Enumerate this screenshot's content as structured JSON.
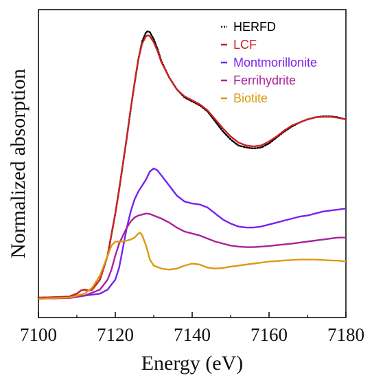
{
  "chart_data": {
    "type": "line",
    "xlabel": "Energy (eV)",
    "ylabel": "Normalized absorption",
    "xlim": [
      7100,
      7180
    ],
    "ylim": [
      0,
      1.4
    ],
    "xticks": [
      "7100",
      "7120",
      "7140",
      "7160",
      "7180"
    ],
    "yticks_shown": false,
    "grid": false,
    "legend_position": "top-right",
    "series": [
      {
        "name": "HERFD",
        "color": "#000000",
        "style": "dotted",
        "x": [
          7100,
          7104,
          7108,
          7110,
          7111,
          7112,
          7113,
          7114,
          7116,
          7118,
          7120,
          7121,
          7122,
          7123,
          7124,
          7125,
          7126,
          7127,
          7128,
          7128.5,
          7129,
          7130,
          7131,
          7132,
          7134,
          7136,
          7138,
          7140,
          7142,
          7144,
          7146,
          7148,
          7150,
          7152,
          7154,
          7156,
          7158,
          7160,
          7162,
          7164,
          7166,
          7168,
          7170,
          7172,
          7174,
          7176,
          7178,
          7180
        ],
        "y": [
          0.01,
          0.012,
          0.015,
          0.03,
          0.045,
          0.05,
          0.045,
          0.05,
          0.1,
          0.22,
          0.43,
          0.55,
          0.68,
          0.81,
          0.95,
          1.08,
          1.2,
          1.29,
          1.335,
          1.34,
          1.335,
          1.3,
          1.25,
          1.19,
          1.11,
          1.05,
          1.01,
          0.99,
          0.97,
          0.94,
          0.89,
          0.84,
          0.8,
          0.77,
          0.76,
          0.755,
          0.76,
          0.78,
          0.81,
          0.84,
          0.865,
          0.885,
          0.9,
          0.91,
          0.915,
          0.915,
          0.91,
          0.9
        ]
      },
      {
        "name": "LCF",
        "color": "#cc2222",
        "style": "solid",
        "x": [
          7100,
          7104,
          7108,
          7110,
          7111,
          7112,
          7113,
          7114,
          7116,
          7118,
          7120,
          7121,
          7122,
          7123,
          7124,
          7125,
          7126,
          7127,
          7128,
          7128.5,
          7129,
          7130,
          7131,
          7132,
          7134,
          7136,
          7138,
          7140,
          7142,
          7144,
          7146,
          7148,
          7150,
          7152,
          7154,
          7156,
          7158,
          7160,
          7162,
          7164,
          7166,
          7168,
          7170,
          7172,
          7174,
          7176,
          7178,
          7180
        ],
        "y": [
          0.01,
          0.012,
          0.015,
          0.03,
          0.045,
          0.05,
          0.045,
          0.05,
          0.1,
          0.22,
          0.43,
          0.55,
          0.68,
          0.81,
          0.95,
          1.08,
          1.2,
          1.28,
          1.315,
          1.32,
          1.315,
          1.285,
          1.24,
          1.185,
          1.11,
          1.05,
          1.015,
          0.995,
          0.975,
          0.945,
          0.9,
          0.855,
          0.815,
          0.785,
          0.77,
          0.765,
          0.77,
          0.79,
          0.815,
          0.845,
          0.87,
          0.885,
          0.9,
          0.91,
          0.913,
          0.913,
          0.908,
          0.9
        ]
      },
      {
        "name": "Montmorillonite",
        "color": "#7722ee",
        "style": "solid",
        "x": [
          7100,
          7108,
          7112,
          7116,
          7118,
          7120,
          7121,
          7122,
          7123,
          7124,
          7125,
          7126,
          7127,
          7128,
          7129,
          7130,
          7131,
          7132,
          7134,
          7136,
          7138,
          7140,
          7142,
          7144,
          7146,
          7148,
          7150,
          7152,
          7154,
          7156,
          7158,
          7160,
          7162,
          7164,
          7166,
          7168,
          7170,
          7172,
          7174,
          7176,
          7178,
          7180
        ],
        "y": [
          0.005,
          0.008,
          0.02,
          0.03,
          0.05,
          0.1,
          0.16,
          0.26,
          0.36,
          0.44,
          0.5,
          0.54,
          0.57,
          0.6,
          0.64,
          0.655,
          0.645,
          0.62,
          0.57,
          0.52,
          0.49,
          0.48,
          0.475,
          0.46,
          0.43,
          0.4,
          0.38,
          0.365,
          0.36,
          0.36,
          0.365,
          0.375,
          0.385,
          0.395,
          0.405,
          0.415,
          0.42,
          0.43,
          0.44,
          0.445,
          0.45,
          0.455
        ]
      },
      {
        "name": "Ferrihydrite",
        "color": "#aa2299",
        "style": "solid",
        "x": [
          7100,
          7108,
          7112,
          7116,
          7118,
          7119,
          7120,
          7121,
          7122,
          7123,
          7124,
          7125,
          7126,
          7127,
          7128,
          7129,
          7130,
          7132,
          7134,
          7136,
          7138,
          7140,
          7142,
          7144,
          7146,
          7148,
          7150,
          7152,
          7154,
          7156,
          7158,
          7160,
          7162,
          7164,
          7166,
          7168,
          7170,
          7172,
          7174,
          7176,
          7178,
          7180
        ],
        "y": [
          0.005,
          0.008,
          0.02,
          0.05,
          0.1,
          0.15,
          0.22,
          0.28,
          0.32,
          0.36,
          0.39,
          0.41,
          0.42,
          0.425,
          0.43,
          0.428,
          0.42,
          0.405,
          0.385,
          0.36,
          0.34,
          0.33,
          0.32,
          0.305,
          0.29,
          0.28,
          0.27,
          0.265,
          0.262,
          0.262,
          0.265,
          0.268,
          0.272,
          0.276,
          0.28,
          0.285,
          0.29,
          0.295,
          0.3,
          0.305,
          0.31,
          0.31
        ]
      },
      {
        "name": "Biotite",
        "color": "#dd9911",
        "style": "solid",
        "x": [
          7100,
          7108,
          7112,
          7114,
          7116,
          7117,
          7118,
          7119,
          7120,
          7121,
          7122,
          7123,
          7124,
          7125,
          7126,
          7126.5,
          7127,
          7128,
          7129,
          7130,
          7132,
          7134,
          7136,
          7138,
          7140,
          7142,
          7144,
          7146,
          7148,
          7150,
          7152,
          7154,
          7156,
          7158,
          7160,
          7162,
          7164,
          7166,
          7168,
          7170,
          7172,
          7174,
          7176,
          7178,
          7180
        ],
        "y": [
          0.005,
          0.01,
          0.03,
          0.06,
          0.12,
          0.17,
          0.22,
          0.27,
          0.29,
          0.29,
          0.29,
          0.295,
          0.3,
          0.31,
          0.33,
          0.335,
          0.32,
          0.27,
          0.2,
          0.17,
          0.155,
          0.15,
          0.155,
          0.17,
          0.18,
          0.175,
          0.16,
          0.155,
          0.158,
          0.165,
          0.17,
          0.175,
          0.18,
          0.185,
          0.19,
          0.193,
          0.196,
          0.198,
          0.2,
          0.2,
          0.2,
          0.198,
          0.196,
          0.195,
          0.19
        ]
      }
    ]
  }
}
